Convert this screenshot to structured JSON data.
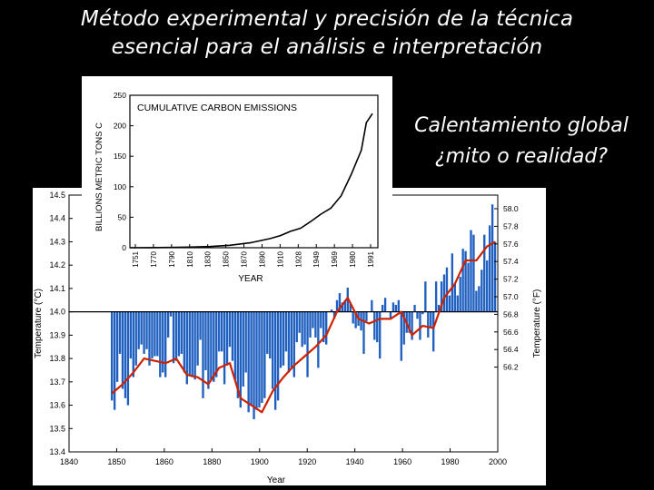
{
  "slide": {
    "title_line1": "Método experimental y precisión de la técnica",
    "title_line2": "esencial para el análisis e interpretación",
    "subtitle_line1": "Calentamiento global",
    "subtitle_line2": "¿mito o realidad?"
  },
  "chart_data": [
    {
      "type": "bar",
      "xlabel": "Year",
      "ylabel": "Temperature (°C)",
      "ylabel_right": "Temperature (°F)",
      "xlim": [
        1840,
        2000
      ],
      "ylim": [
        13.4,
        14.5
      ],
      "baseline": 14.0,
      "x_ticks": [
        "1840",
        "1850",
        "1860",
        "1880",
        "1900",
        "1920",
        "1940",
        "1960",
        "1980",
        "2000"
      ],
      "y_ticks": [
        "14.5",
        "14.4",
        "14.3",
        "14.2",
        "14.1",
        "14.0",
        "13.9",
        "13.8",
        "13.7",
        "13.6",
        "13.5",
        "13.4"
      ],
      "y_ticks_right": [
        "58.0",
        "57.8",
        "57.6",
        "57.4",
        "57.2",
        "57.0",
        "56.8",
        "56.6",
        "56.4",
        "56.2"
      ],
      "colors": {
        "bars": "#1f5fbf",
        "smoothed": "#cc2200",
        "baseline": "#000000"
      },
      "series": [
        {
          "x": [
            1856,
            1857,
            1858,
            1859,
            1860,
            1861,
            1862,
            1863,
            1864,
            1865,
            1866,
            1867,
            1868,
            1869,
            1870,
            1871,
            1872,
            1873,
            1874,
            1875,
            1876,
            1877,
            1878,
            1879,
            1880,
            1881,
            1882,
            1883,
            1884,
            1885,
            1886,
            1887,
            1888,
            1889,
            1890,
            1891,
            1892,
            1893,
            1894,
            1895,
            1896,
            1897,
            1898,
            1899,
            1900,
            1901,
            1902,
            1903,
            1904,
            1905,
            1906,
            1907,
            1908,
            1909,
            1910,
            1911,
            1912,
            1913,
            1914,
            1915,
            1916,
            1917,
            1918,
            1919,
            1920,
            1921,
            1922,
            1923,
            1924,
            1925,
            1926,
            1927,
            1928,
            1929,
            1930,
            1931,
            1932,
            1933,
            1934,
            1935,
            1936,
            1937,
            1938,
            1939,
            1940,
            1941,
            1942,
            1943,
            1944,
            1945,
            1946,
            1947,
            1948,
            1949,
            1950,
            1951,
            1952,
            1953,
            1954,
            1955,
            1956,
            1957,
            1958,
            1959,
            1960,
            1961,
            1962,
            1963,
            1964,
            1965,
            1966,
            1967,
            1968,
            1969,
            1970,
            1971,
            1972,
            1973,
            1974,
            1975,
            1976,
            1977,
            1978,
            1979,
            1980,
            1981,
            1982,
            1983,
            1984,
            1985,
            1986,
            1987,
            1988,
            1989,
            1990,
            1991,
            1992,
            1993,
            1994,
            1995,
            1996,
            1997,
            1998,
            1999
          ],
          "values": [
            13.62,
            13.58,
            13.7,
            13.82,
            13.67,
            13.63,
            13.6,
            13.8,
            13.72,
            13.77,
            13.84,
            13.86,
            13.82,
            13.84,
            13.77,
            13.8,
            13.81,
            13.81,
            13.72,
            13.74,
            13.72,
            13.89,
            13.98,
            13.78,
            13.79,
            13.81,
            13.82,
            13.74,
            13.69,
            13.73,
            13.72,
            13.71,
            13.77,
            13.88,
            13.63,
            13.75,
            13.67,
            13.71,
            13.7,
            13.72,
            13.83,
            13.83,
            13.69,
            13.77,
            13.85,
            13.79,
            13.71,
            13.63,
            13.59,
            13.68,
            13.74,
            13.57,
            13.6,
            13.54,
            13.58,
            13.59,
            13.61,
            13.63,
            13.82,
            13.8,
            13.67,
            13.58,
            13.62,
            13.76,
            13.77,
            13.83,
            13.74,
            13.76,
            13.72,
            13.87,
            13.91,
            13.85,
            13.86,
            13.72,
            13.89,
            13.93,
            13.89,
            13.76,
            13.93,
            13.87,
            13.86,
            14.0,
            14.01,
            13.97,
            14.05,
            14.08,
            14.04,
            14.05,
            14.15,
            14.04,
            13.95,
            13.93,
            13.94,
            13.92,
            13.82,
            13.96,
            14.0,
            14.05,
            13.88,
            13.87,
            13.8,
            14.03,
            14.06,
            14.0,
            13.97,
            14.04,
            14.03,
            14.05,
            13.79,
            13.86,
            13.91,
            13.91,
            13.88,
            14.03,
            13.97,
            13.88,
            13.99,
            14.13,
            13.89,
            13.93,
            13.83,
            14.13,
            14.03,
            14.13,
            14.16,
            14.19,
            14.07,
            14.25,
            14.12,
            14.07,
            14.15,
            14.27,
            14.26,
            14.21,
            14.35,
            14.33,
            14.09,
            14.11,
            14.18,
            14.33,
            14.22,
            14.37,
            14.46,
            14.3
          ]
        }
      ],
      "smoothed": {
        "x": [
          1856,
          1860,
          1864,
          1868,
          1872,
          1876,
          1880,
          1884,
          1888,
          1892,
          1896,
          1900,
          1904,
          1908,
          1912,
          1916,
          1920,
          1924,
          1928,
          1932,
          1936,
          1940,
          1944,
          1948,
          1952,
          1956,
          1960,
          1964,
          1968,
          1972,
          1976,
          1980,
          1984,
          1988,
          1992,
          1996,
          1999
        ],
        "values": [
          13.65,
          13.69,
          13.74,
          13.8,
          13.79,
          13.78,
          13.8,
          13.73,
          13.72,
          13.69,
          13.76,
          13.78,
          13.63,
          13.6,
          13.57,
          13.66,
          13.72,
          13.77,
          13.81,
          13.85,
          13.9,
          14.0,
          14.06,
          13.97,
          13.95,
          13.97,
          13.97,
          14.0,
          13.9,
          13.94,
          13.93,
          14.06,
          14.12,
          14.22,
          14.22,
          14.28,
          14.3
        ]
      }
    },
    {
      "type": "line",
      "title": "CUMULATIVE CARBON EMISSIONS",
      "xlabel": "YEAR",
      "ylabel": "BILLIONS METRIC TONS C",
      "ylim": [
        0,
        250
      ],
      "y_ticks": [
        "250",
        "200",
        "150",
        "100",
        "50",
        "0"
      ],
      "x_ticks": [
        "1751",
        "1770",
        "1790",
        "1810",
        "1830",
        "1850",
        "1870",
        "1890",
        "1910",
        "1928",
        "1949",
        "1969",
        "1980",
        "1991"
      ],
      "colors": {
        "line": "#000000"
      },
      "series": [
        {
          "x": [
            1751,
            1770,
            1790,
            1810,
            1830,
            1850,
            1870,
            1890,
            1900,
            1910,
            1920,
            1930,
            1940,
            1950,
            1960,
            1970,
            1980,
            1985,
            1991
          ],
          "values": [
            0,
            0.2,
            0.5,
            1,
            2,
            4,
            8,
            15,
            20,
            27,
            32,
            43,
            55,
            65,
            85,
            120,
            160,
            205,
            220
          ]
        }
      ]
    }
  ]
}
